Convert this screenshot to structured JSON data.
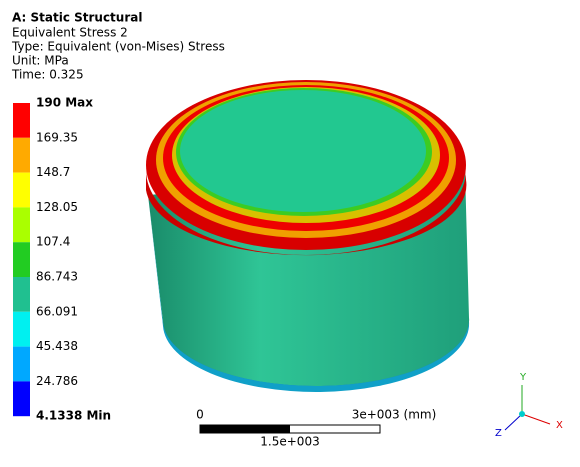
{
  "header": {
    "title": "A: Static Structural",
    "lines": [
      "Equivalent Stress 2",
      "Type: Equivalent (von-Mises) Stress",
      "Unit: MPa",
      "Time: 0.325"
    ]
  },
  "legend": {
    "labels": [
      "190 Max",
      "169.35",
      "148.7",
      "128.05",
      "107.4",
      "86.743",
      "66.091",
      "45.438",
      "24.786",
      "4.1338 Min"
    ],
    "colors": [
      "#ff0000",
      "#ffaa00",
      "#ffff00",
      "#aaff00",
      "#22cc22",
      "#20c090",
      "#00f0f0",
      "#00a8ff",
      "#0000ff"
    ]
  },
  "scale_bar": {
    "start": "0",
    "end": "3e+003 (mm)",
    "middle": "1.5e+003"
  },
  "triad": {
    "y": "Y",
    "x": "X",
    "z": "Z"
  }
}
